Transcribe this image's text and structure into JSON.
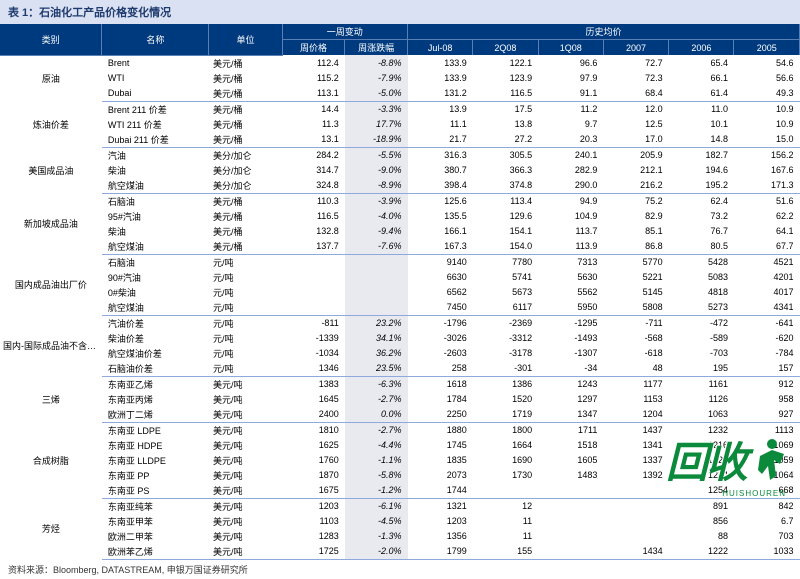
{
  "title": "表 1：石油化工产品价格变化情况",
  "source": "资料来源：Bloomberg, DATASTREAM, 申银万国证券研究所",
  "colors": {
    "header_bg": "#003a7e",
    "header_text": "#ffffff",
    "title_bg": "#d9e1f2",
    "sep_line": "#8ea9db",
    "change_bg": "#e8eaf0",
    "wm_green": "#0a8a3a"
  },
  "header": {
    "cat": "类别",
    "name": "名称",
    "unit": "单位",
    "week_group": "一周变动",
    "hist_group": "历史均价",
    "week_price": "周价格",
    "week_change": "周涨跌幅",
    "h": [
      "Jul-08",
      "2Q08",
      "1Q08",
      "2007",
      "2006",
      "2005"
    ]
  },
  "groups": [
    {
      "cat": "原油",
      "rows": [
        {
          "n": "Brent",
          "u": "美元/桶",
          "p": "112.4",
          "c": "-8.8%",
          "h": [
            "133.9",
            "122.1",
            "96.6",
            "72.7",
            "65.4",
            "54.6"
          ]
        },
        {
          "n": "WTI",
          "u": "美元/桶",
          "p": "115.2",
          "c": "-7.9%",
          "h": [
            "133.9",
            "123.9",
            "97.9",
            "72.3",
            "66.1",
            "56.6"
          ]
        },
        {
          "n": "Dubai",
          "u": "美元/桶",
          "p": "113.1",
          "c": "-5.0%",
          "h": [
            "131.2",
            "116.5",
            "91.1",
            "68.4",
            "61.4",
            "49.3"
          ]
        }
      ]
    },
    {
      "cat": "炼油价差",
      "rows": [
        {
          "n": "Brent 211 价差",
          "u": "美元/桶",
          "p": "14.4",
          "c": "-3.3%",
          "h": [
            "13.9",
            "17.5",
            "11.2",
            "12.0",
            "11.0",
            "10.9"
          ]
        },
        {
          "n": "WTI 211 价差",
          "u": "美元/桶",
          "p": "11.3",
          "c": "17.7%",
          "h": [
            "11.1",
            "13.8",
            "9.7",
            "12.5",
            "10.1",
            "10.9"
          ]
        },
        {
          "n": "Dubai 211 价差",
          "u": "美元/桶",
          "p": "13.1",
          "c": "-18.9%",
          "h": [
            "21.7",
            "27.2",
            "20.3",
            "17.0",
            "14.8",
            "15.0"
          ]
        }
      ]
    },
    {
      "cat": "美国成品油",
      "rows": [
        {
          "n": "汽油",
          "u": "美分/加仑",
          "p": "284.2",
          "c": "-5.5%",
          "h": [
            "316.3",
            "305.5",
            "240.1",
            "205.9",
            "182.7",
            "156.2"
          ]
        },
        {
          "n": "柴油",
          "u": "美分/加仑",
          "p": "314.7",
          "c": "-9.0%",
          "h": [
            "380.7",
            "366.3",
            "282.9",
            "212.1",
            "194.6",
            "167.6"
          ]
        },
        {
          "n": "航空煤油",
          "u": "美分/加仑",
          "p": "324.8",
          "c": "-8.9%",
          "h": [
            "398.4",
            "374.8",
            "290.0",
            "216.2",
            "195.2",
            "171.3"
          ]
        }
      ]
    },
    {
      "cat": "新加坡成品油",
      "rows": [
        {
          "n": "石脑油",
          "u": "美元/桶",
          "p": "110.3",
          "c": "-3.9%",
          "h": [
            "125.6",
            "113.4",
            "94.9",
            "75.2",
            "62.4",
            "51.6"
          ]
        },
        {
          "n": "95#汽油",
          "u": "美元/桶",
          "p": "116.5",
          "c": "-4.0%",
          "h": [
            "135.5",
            "129.6",
            "104.9",
            "82.9",
            "73.2",
            "62.2"
          ]
        },
        {
          "n": "柴油",
          "u": "美元/桶",
          "p": "132.8",
          "c": "-9.4%",
          "h": [
            "166.1",
            "154.1",
            "113.7",
            "85.1",
            "76.7",
            "64.1"
          ]
        },
        {
          "n": "航空煤油",
          "u": "美元/桶",
          "p": "137.7",
          "c": "-7.6%",
          "h": [
            "167.3",
            "154.0",
            "113.9",
            "86.8",
            "80.5",
            "67.7"
          ]
        }
      ]
    },
    {
      "cat": "国内成品油出厂价",
      "rows": [
        {
          "n": "石脑油",
          "u": "元/吨",
          "p": "",
          "c": "",
          "h": [
            "9140",
            "7780",
            "7313",
            "5770",
            "5428",
            "4521"
          ]
        },
        {
          "n": "90#汽油",
          "u": "元/吨",
          "p": "",
          "c": "",
          "h": [
            "6630",
            "5741",
            "5630",
            "5221",
            "5083",
            "4201"
          ]
        },
        {
          "n": "0#柴油",
          "u": "元/吨",
          "p": "",
          "c": "",
          "h": [
            "6562",
            "5673",
            "5562",
            "5145",
            "4818",
            "4017"
          ]
        },
        {
          "n": "航空煤油",
          "u": "元/吨",
          "p": "",
          "c": "",
          "h": [
            "7450",
            "6117",
            "5950",
            "5808",
            "5273",
            "4341"
          ]
        }
      ]
    },
    {
      "cat": "国内-国际成品油不含税价差",
      "rows": [
        {
          "n": "汽油价差",
          "u": "元/吨",
          "p": "-811",
          "c": "23.2%",
          "h": [
            "-1796",
            "-2369",
            "-1295",
            "-711",
            "-472",
            "-641"
          ]
        },
        {
          "n": "柴油价差",
          "u": "元/吨",
          "p": "-1339",
          "c": "34.1%",
          "h": [
            "-3026",
            "-3312",
            "-1493",
            "-568",
            "-589",
            "-620"
          ]
        },
        {
          "n": "航空煤油价差",
          "u": "元/吨",
          "p": "-1034",
          "c": "36.2%",
          "h": [
            "-2603",
            "-3178",
            "-1307",
            "-618",
            "-703",
            "-784"
          ]
        },
        {
          "n": "石脑油价差",
          "u": "元/吨",
          "p": "1346",
          "c": "23.5%",
          "h": [
            "258",
            "-301",
            "-34",
            "48",
            "195",
            "157"
          ]
        }
      ]
    },
    {
      "cat": "三烯",
      "rows": [
        {
          "n": "东南亚乙烯",
          "u": "美元/吨",
          "p": "1383",
          "c": "-6.3%",
          "h": [
            "1618",
            "1386",
            "1243",
            "1177",
            "1161",
            "912"
          ]
        },
        {
          "n": "东南亚丙烯",
          "u": "美元/吨",
          "p": "1645",
          "c": "-2.7%",
          "h": [
            "1784",
            "1520",
            "1297",
            "1153",
            "1126",
            "958"
          ]
        },
        {
          "n": "欧洲丁二烯",
          "u": "美元/吨",
          "p": "2400",
          "c": "0.0%",
          "h": [
            "2250",
            "1719",
            "1347",
            "1204",
            "1063",
            "927"
          ]
        }
      ]
    },
    {
      "cat": "合成树脂",
      "rows": [
        {
          "n": "东南亚 LDPE",
          "u": "美元/吨",
          "p": "1810",
          "c": "-2.7%",
          "h": [
            "1880",
            "1800",
            "1711",
            "1437",
            "1232",
            "1113"
          ]
        },
        {
          "n": "东南亚 HDPE",
          "u": "美元/吨",
          "p": "1625",
          "c": "-4.4%",
          "h": [
            "1745",
            "1664",
            "1518",
            "1341",
            "1216",
            "1069"
          ]
        },
        {
          "n": "东南亚 LLDPE",
          "u": "美元/吨",
          "p": "1760",
          "c": "-1.1%",
          "h": [
            "1835",
            "1690",
            "1605",
            "1337",
            "1224",
            "1059"
          ]
        },
        {
          "n": "东南亚 PP",
          "u": "美元/吨",
          "p": "1870",
          "c": "-5.8%",
          "h": [
            "2073",
            "1730",
            "1483",
            "1392",
            "1234",
            "1064"
          ]
        },
        {
          "n": "东南亚 PS",
          "u": "美元/吨",
          "p": "1675",
          "c": "-1.2%",
          "h": [
            "1744",
            "",
            "",
            "",
            "1254",
            "668"
          ]
        }
      ]
    },
    {
      "cat": "芳烃",
      "rows": [
        {
          "n": "东南亚纯苯",
          "u": "美元/吨",
          "p": "1203",
          "c": "-6.1%",
          "h": [
            "1321",
            "12",
            "",
            "",
            "891",
            "842"
          ]
        },
        {
          "n": "东南亚甲苯",
          "u": "美元/吨",
          "p": "1103",
          "c": "-4.5%",
          "h": [
            "1203",
            "11",
            "",
            "",
            "856",
            "6.7"
          ]
        },
        {
          "n": "欧洲二甲苯",
          "u": "美元/吨",
          "p": "1283",
          "c": "-1.3%",
          "h": [
            "1356",
            "11",
            "",
            "",
            "88",
            "703"
          ]
        },
        {
          "n": "欧洲苯乙烯",
          "u": "美元/吨",
          "p": "1725",
          "c": "-2.0%",
          "h": [
            "1799",
            "155",
            "",
            "1434",
            "1222",
            "1033"
          ]
        }
      ]
    }
  ],
  "watermark": {
    "text": "回收",
    "url": "HUISHOUREN"
  }
}
